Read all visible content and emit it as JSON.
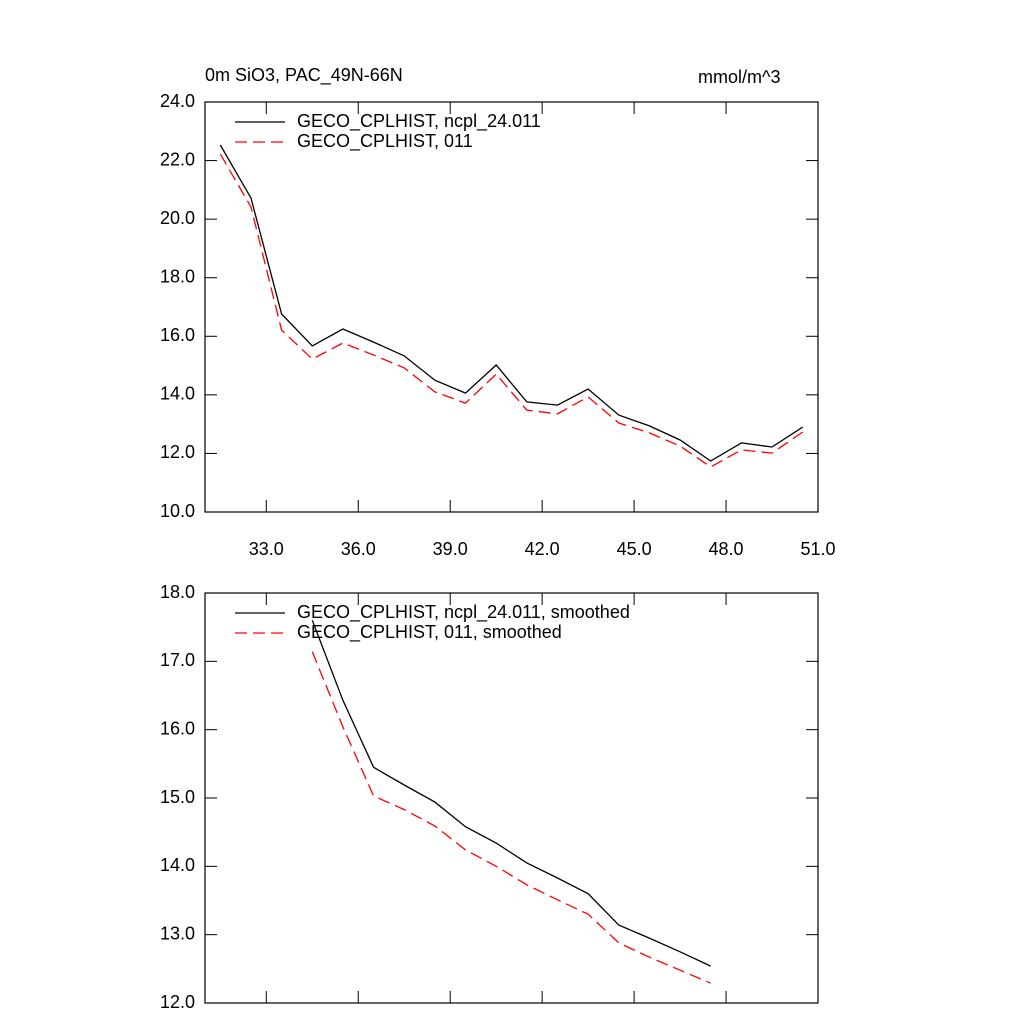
{
  "chart_data": [
    {
      "type": "line",
      "title": "0m SiO3, PAC_49N-66N",
      "units": "mmol/m^3",
      "xlim": [
        31,
        51
      ],
      "xticks": [
        {
          "value": 33,
          "label": "33.0"
        },
        {
          "value": 36,
          "label": "36.0"
        },
        {
          "value": 39,
          "label": "39.0"
        },
        {
          "value": 42,
          "label": "42.0"
        },
        {
          "value": 45,
          "label": "45.0"
        },
        {
          "value": 48,
          "label": "48.0"
        },
        {
          "value": 51,
          "label": "51.0"
        }
      ],
      "ylim": [
        10,
        24
      ],
      "yticks": [
        {
          "value": 10,
          "label": "10.0"
        },
        {
          "value": 12,
          "label": "12.0"
        },
        {
          "value": 14,
          "label": "14.0"
        },
        {
          "value": 16,
          "label": "16.0"
        },
        {
          "value": 18,
          "label": "18.0"
        },
        {
          "value": 20,
          "label": "20.0"
        },
        {
          "value": 22,
          "label": "22.0"
        },
        {
          "value": 24,
          "label": "24.0"
        }
      ],
      "x": [
        31.5,
        32.5,
        33.5,
        34.5,
        35.5,
        36.5,
        37.5,
        38.5,
        39.5,
        40.5,
        41.5,
        42.5,
        43.5,
        44.5,
        45.5,
        46.5,
        47.5,
        48.5,
        49.5,
        50.5
      ],
      "series": [
        {
          "name": "GECO_CPLHIST, ncpl_24.011",
          "color": "#000000",
          "style": "solid",
          "values": [
            22.53,
            20.72,
            16.76,
            15.67,
            16.25,
            15.8,
            15.33,
            14.5,
            14.06,
            15.02,
            13.76,
            13.65,
            14.2,
            13.31,
            12.94,
            12.46,
            11.74,
            12.36,
            12.22,
            12.9
          ]
        },
        {
          "name": "GECO_CPLHIST, 011",
          "color": "#ff0000",
          "style": "dashed",
          "values": [
            22.22,
            20.41,
            16.21,
            15.22,
            15.77,
            15.36,
            14.92,
            14.1,
            13.72,
            14.71,
            13.48,
            13.35,
            13.93,
            13.04,
            12.7,
            12.25,
            11.54,
            12.12,
            12.01,
            12.73
          ]
        }
      ]
    },
    {
      "type": "line",
      "xlim": [
        31,
        51
      ],
      "xticks": [
        33,
        36,
        39,
        42,
        45,
        48,
        51
      ],
      "ylim": [
        12,
        18
      ],
      "yticks": [
        {
          "value": 12,
          "label": "12.0"
        },
        {
          "value": 13,
          "label": "13.0"
        },
        {
          "value": 14,
          "label": "14.0"
        },
        {
          "value": 15,
          "label": "15.0"
        },
        {
          "value": 16,
          "label": "16.0"
        },
        {
          "value": 17,
          "label": "17.0"
        },
        {
          "value": 18,
          "label": "18.0"
        }
      ],
      "x": [
        34.5,
        35.5,
        36.5,
        37.5,
        38.5,
        39.5,
        40.5,
        41.5,
        42.5,
        43.5,
        44.5,
        45.5,
        46.5,
        47.5
      ],
      "series": [
        {
          "name": "GECO_CPLHIST, ncpl_24.011, smoothed",
          "color": "#000000",
          "style": "solid",
          "values": [
            17.6,
            16.43,
            15.45,
            15.19,
            14.94,
            14.58,
            14.34,
            14.05,
            13.83,
            13.6,
            13.14,
            12.95,
            12.75,
            12.54
          ]
        },
        {
          "name": "GECO_CPLHIST, 011, smoothed",
          "color": "#ff0000",
          "style": "dashed",
          "values": [
            17.14,
            16.04,
            15.03,
            14.83,
            14.59,
            14.24,
            14.0,
            13.73,
            13.51,
            13.3,
            12.88,
            12.67,
            12.48,
            12.29
          ]
        }
      ]
    }
  ]
}
